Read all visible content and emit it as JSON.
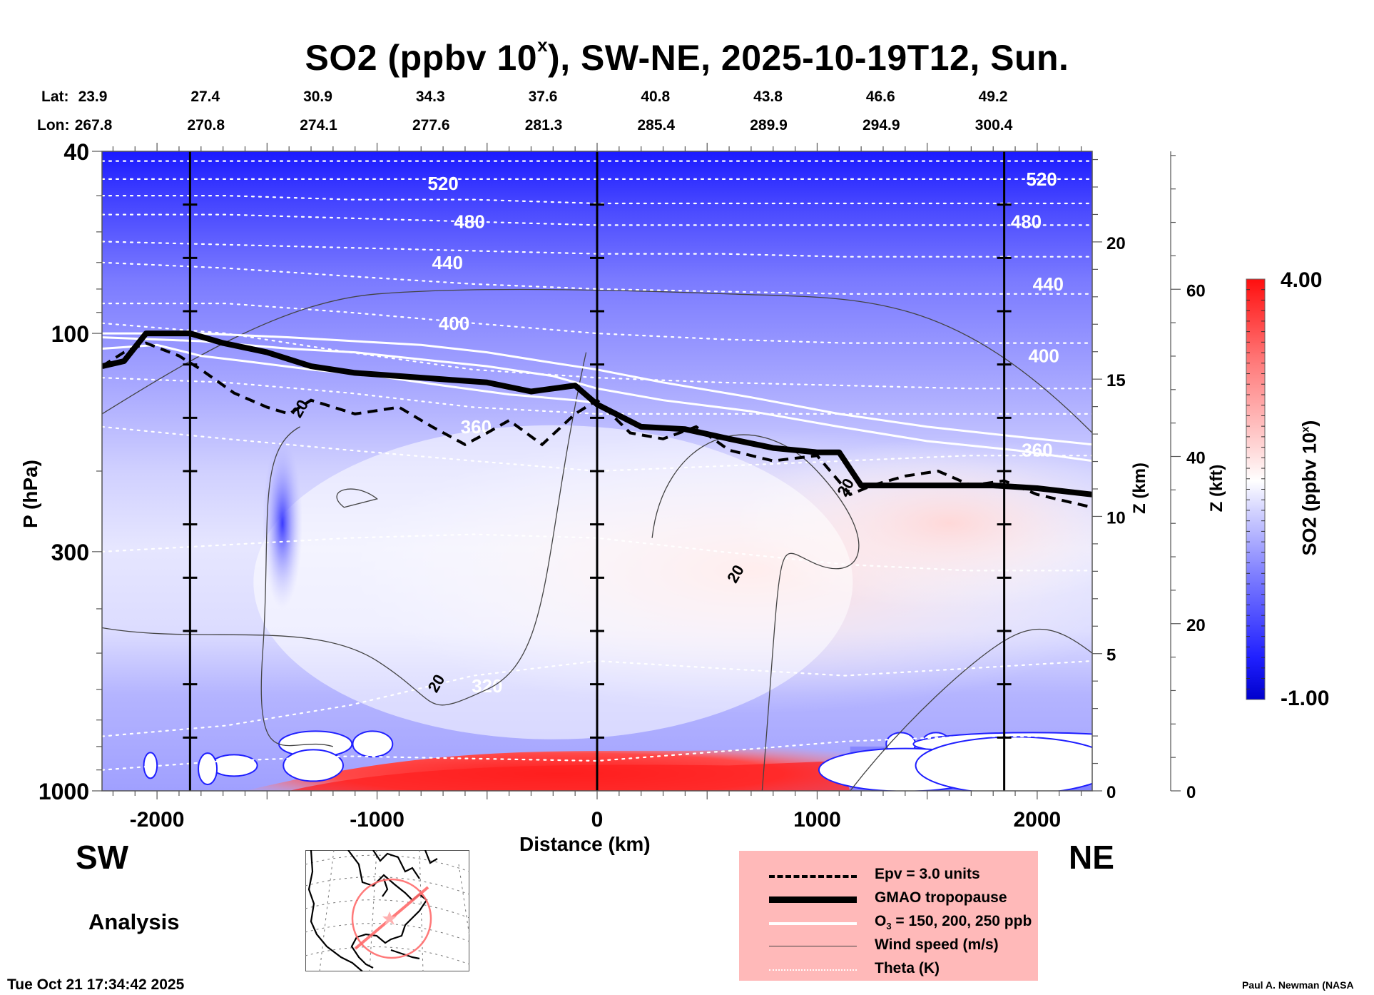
{
  "title": {
    "prefix": "SO2 (ppbv 10",
    "sup": "x",
    "suffix": "), SW-NE, 2025-10-19T12, Sun."
  },
  "coords": {
    "lat_label": "Lat:",
    "lon_label": "Lon:",
    "lat": [
      "23.9",
      "27.4",
      "30.9",
      "34.3",
      "37.6",
      "40.8",
      "43.8",
      "46.6",
      "49.2"
    ],
    "lon": [
      "267.8",
      "270.8",
      "274.1",
      "277.6",
      "281.3",
      "285.4",
      "289.9",
      "294.9",
      "300.4"
    ]
  },
  "direction": {
    "left": "SW",
    "right": "NE"
  },
  "run_type": "Analysis",
  "footer": {
    "timestamp": "Tue Oct 21 17:34:42 2025",
    "credit": "Paul A. Newman (NASA"
  },
  "legend": [
    {
      "style": "dashed",
      "label": "Epv = 3.0 units"
    },
    {
      "style": "thick",
      "label": "GMAO tropopause"
    },
    {
      "style": "white",
      "label": "O",
      "sub": "3",
      "label_rest": " = 150, 200, 250 ppb"
    },
    {
      "style": "thin",
      "label": "Wind speed (m/s)"
    },
    {
      "style": "dotted",
      "label": "Theta (K)"
    }
  ],
  "chart_data": {
    "type": "heatmap",
    "title": "SO2 (ppbv 10^x), SW-NE, 2025-10-19T12, Sun.",
    "xlabel": "Distance (km)",
    "ylabel": "P (hPa)",
    "y2label": "Z (km)",
    "y3label": "Z (kft)",
    "xlim": [
      -2250,
      2250
    ],
    "ylim": [
      1000,
      40
    ],
    "yscale": "log",
    "x_ticks": [
      -2000,
      -1000,
      0,
      1000,
      2000
    ],
    "x_tick_labels": [
      "-2000",
      "-1000",
      "0",
      "1000",
      "2000"
    ],
    "y_ticks": [
      40,
      100,
      300,
      1000
    ],
    "y_tick_labels": [
      "40",
      "100",
      "300",
      "1000"
    ],
    "z_km_ticks": [
      0,
      5,
      10,
      15,
      20
    ],
    "z_km_labels": [
      "0",
      "5",
      "10",
      "15",
      "20"
    ],
    "z_kft_ticks": [
      0,
      20,
      40,
      60
    ],
    "z_kft_labels": [
      "0",
      "20",
      "40",
      "60"
    ],
    "z_km_max": 23.3,
    "z_kft_max": 76.5,
    "vertical_markers_km": [
      -1850,
      0,
      1850
    ],
    "colorbar": {
      "label": "SO2 (ppbv 10^x)",
      "min": -1.0,
      "max": 4.0,
      "min_label": "-1.00",
      "max_label": "4.00",
      "colors": [
        "#0000d8",
        "#3030ff",
        "#8080ff",
        "#c8c8ff",
        "#ffffff",
        "#ffc8c8",
        "#ff7070",
        "#ff1010"
      ]
    },
    "theta_contours": [
      {
        "K": 320,
        "p": [
          760,
          720,
          650,
          560,
          520,
          540,
          560,
          540,
          520
        ]
      },
      {
        "K": 360,
        "p": [
          160,
          170,
          180,
          190,
          200,
          195,
          190,
          185,
          185
        ]
      },
      {
        "K": 400,
        "p": [
          95,
          100,
          110,
          120,
          125,
          128,
          130,
          132,
          132
        ]
      },
      {
        "K": 440,
        "p": [
          70,
          72,
          75,
          78,
          80,
          81,
          82,
          82,
          82
        ]
      },
      {
        "K": 480,
        "p": [
          55,
          55,
          56,
          57,
          58,
          58,
          58,
          58,
          58
        ]
      },
      {
        "K": 520,
        "p": [
          46,
          46,
          46,
          46,
          46,
          46,
          46,
          46,
          46
        ]
      }
    ],
    "theta_labels": [
      {
        "K": "520",
        "x": -700,
        "p": 47
      },
      {
        "K": "480",
        "x": -580,
        "p": 57
      },
      {
        "K": "440",
        "x": -680,
        "p": 70
      },
      {
        "K": "400",
        "x": -650,
        "p": 95
      },
      {
        "K": "360",
        "x": -550,
        "p": 160
      },
      {
        "K": "320",
        "x": -500,
        "p": 590
      },
      {
        "K": "520",
        "x": 2020,
        "p": 46
      },
      {
        "K": "480",
        "x": 1950,
        "p": 57
      },
      {
        "K": "440",
        "x": 2050,
        "p": 78
      },
      {
        "K": "400",
        "x": 2030,
        "p": 112
      },
      {
        "K": "360",
        "x": 2000,
        "p": 180
      }
    ],
    "tropopause_p": {
      "x": [
        -2250,
        -2150,
        -2050,
        -1850,
        -1700,
        -1500,
        -1300,
        -1100,
        -900,
        -700,
        -500,
        -300,
        -100,
        0,
        200,
        400,
        600,
        800,
        1000,
        1100,
        1200,
        1400,
        1600,
        1800,
        2000,
        2250
      ],
      "p": [
        118,
        115,
        100,
        100,
        105,
        110,
        118,
        122,
        124,
        126,
        128,
        134,
        130,
        143,
        160,
        162,
        170,
        178,
        182,
        182,
        215,
        215,
        215,
        215,
        218,
        225
      ]
    },
    "epv_p": {
      "x": [
        -2250,
        -2150,
        -2050,
        -1900,
        -1800,
        -1650,
        -1500,
        -1400,
        -1300,
        -1100,
        -900,
        -750,
        -600,
        -500,
        -400,
        -250,
        -100,
        0,
        150,
        300,
        450,
        600,
        800,
        1000,
        1150,
        1250,
        1400,
        1550,
        1700,
        1850,
        2000,
        2250
      ],
      "p": [
        118,
        110,
        105,
        112,
        120,
        135,
        145,
        150,
        140,
        150,
        145,
        160,
        175,
        165,
        155,
        175,
        150,
        140,
        165,
        170,
        160,
        180,
        190,
        185,
        225,
        215,
        205,
        200,
        215,
        210,
        225,
        240
      ]
    },
    "ozone_p": [
      {
        "ppb": 150,
        "x": [
          -2250,
          -1800,
          -1400,
          -1100,
          -800,
          -500,
          -200,
          0,
          300,
          700,
          1100,
          1500,
          1900,
          2250
        ],
        "p": [
          100,
          100,
          102,
          104,
          106,
          110,
          116,
          120,
          128,
          138,
          150,
          160,
          168,
          175
        ]
      },
      {
        "ppb": 200,
        "x": [
          -2250,
          -1800,
          -1400,
          -1100,
          -800,
          -500,
          -200,
          0,
          300,
          700,
          1100,
          1500,
          1900,
          2250
        ],
        "p": [
          102,
          104,
          108,
          110,
          114,
          118,
          124,
          132,
          140,
          148,
          160,
          172,
          180,
          190
        ]
      },
      {
        "ppb": 250,
        "x": [
          -2250,
          -2000,
          -1800,
          -1600,
          -1300,
          -1000,
          -700,
          -400,
          -100,
          0
        ],
        "p": [
          108,
          106,
          112,
          115,
          120,
          124,
          130,
          136,
          140,
          142
        ]
      }
    ],
    "wind_label": "20",
    "wind_contour_label_positions": [
      {
        "x": -1330,
        "p": 148
      },
      {
        "x": -710,
        "p": 590
      },
      {
        "x": 650,
        "p": 340
      },
      {
        "x": 1150,
        "p": 220
      }
    ],
    "so2_features": [
      {
        "name": "boundary-layer-maximum",
        "x_range": [
          -1400,
          1150
        ],
        "p_range": [
          850,
          1000
        ],
        "value": 4.0
      },
      {
        "name": "upper-stratosphere-minimum",
        "x_range": [
          -2250,
          2250
        ],
        "p_range": [
          40,
          60
        ],
        "value": -1.0
      },
      {
        "name": "convective-minimum",
        "x_range": [
          -1500,
          -1350
        ],
        "p_range": [
          200,
          350
        ],
        "value": -0.6
      }
    ]
  },
  "map_inset": {
    "description": "North America locator map with SW-NE cross-section line and circle",
    "track_color": "#ff6b6b"
  }
}
